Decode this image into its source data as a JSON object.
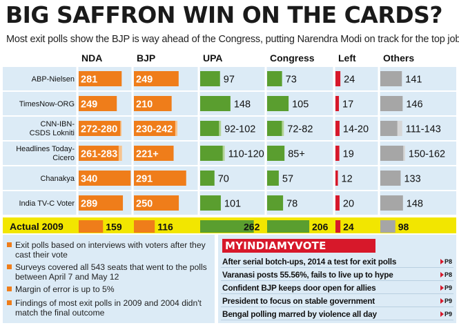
{
  "header": {
    "title": "BIG SAFFRON WIN ON THE CARDS?",
    "subtitle": "Most exit polls show the BJP is way ahead of the Congress, putting Narendra Modi on track for the top job"
  },
  "chart_data": {
    "type": "table",
    "columns": [
      "NDA",
      "BJP",
      "UPA",
      "Congress",
      "Left",
      "Others"
    ],
    "rows": [
      {
        "pollster": "ABP-Nielsen",
        "values": [
          "281",
          "249",
          "97",
          "73",
          "24",
          "141"
        ],
        "low": [
          281,
          249,
          97,
          73,
          24,
          141
        ],
        "high": [
          281,
          249,
          97,
          73,
          24,
          141
        ]
      },
      {
        "pollster": "TimesNow-ORG",
        "values": [
          "249",
          "210",
          "148",
          "105",
          "17",
          "146"
        ],
        "low": [
          249,
          210,
          148,
          105,
          17,
          146
        ],
        "high": [
          249,
          210,
          148,
          105,
          17,
          146
        ]
      },
      {
        "pollster": "CNN-IBN-CSDS Lokniti",
        "values": [
          "272-280",
          "230-242",
          "92-102",
          "72-82",
          "14-20",
          "111-143"
        ],
        "low": [
          272,
          230,
          92,
          72,
          14,
          111
        ],
        "high": [
          280,
          242,
          102,
          82,
          20,
          143
        ]
      },
      {
        "pollster": "Headlines Today-Cicero",
        "values": [
          "261-283",
          "221+",
          "110-120",
          "85+",
          "19",
          "150-162"
        ],
        "low": [
          261,
          221,
          110,
          85,
          19,
          150
        ],
        "high": [
          283,
          221,
          120,
          85,
          19,
          162
        ]
      },
      {
        "pollster": "Chanakya",
        "values": [
          "340",
          "291",
          "70",
          "57",
          "12",
          "133"
        ],
        "low": [
          340,
          291,
          70,
          57,
          12,
          133
        ],
        "high": [
          340,
          291,
          70,
          57,
          12,
          133
        ]
      },
      {
        "pollster": "India TV-C Voter",
        "values": [
          "289",
          "250",
          "101",
          "78",
          "20",
          "148"
        ],
        "low": [
          289,
          250,
          101,
          78,
          20,
          148
        ],
        "high": [
          289,
          250,
          101,
          78,
          20,
          148
        ]
      }
    ],
    "actual": {
      "label": "Actual 2009",
      "values": [
        "159",
        "116",
        "262",
        "206",
        "24",
        "98"
      ],
      "low": [
        159,
        116,
        262,
        206,
        24,
        98
      ],
      "high": [
        159,
        116,
        262,
        206,
        24,
        98
      ]
    },
    "colors": {
      "orange": "#ef7d1a",
      "orange_light": "#f7c48f",
      "green": "#5a9e2f",
      "green_light": "#b3d497",
      "red": "#d7182a",
      "gray": "#a6a6a6",
      "gray_light": "#d6d6d6",
      "highlight": "#f2e600",
      "row_bg": "#dcebf6"
    }
  },
  "notes": [
    "Exit polls based on interviews with voters after they cast their vote",
    "Surveys covered all 543 seats that went to the polls between April 7 and May 12",
    "Margin of error is up to 5%",
    "Findings of most exit polls in 2009 and 2004 didn't match the final outcome"
  ],
  "mim": {
    "header": "MYINDIAMYVOTE",
    "items": [
      {
        "headline": "After serial botch-ups, 2014 a test for exit polls",
        "page": "P8"
      },
      {
        "headline": "Varanasi posts 55.56%, fails to live up to hype",
        "page": "P8"
      },
      {
        "headline": "Confident BJP keeps door open for allies",
        "page": "P9"
      },
      {
        "headline": "President to focus on stable government",
        "page": "P9"
      },
      {
        "headline": "Bengal polling marred by violence all day",
        "page": "P9"
      }
    ]
  }
}
